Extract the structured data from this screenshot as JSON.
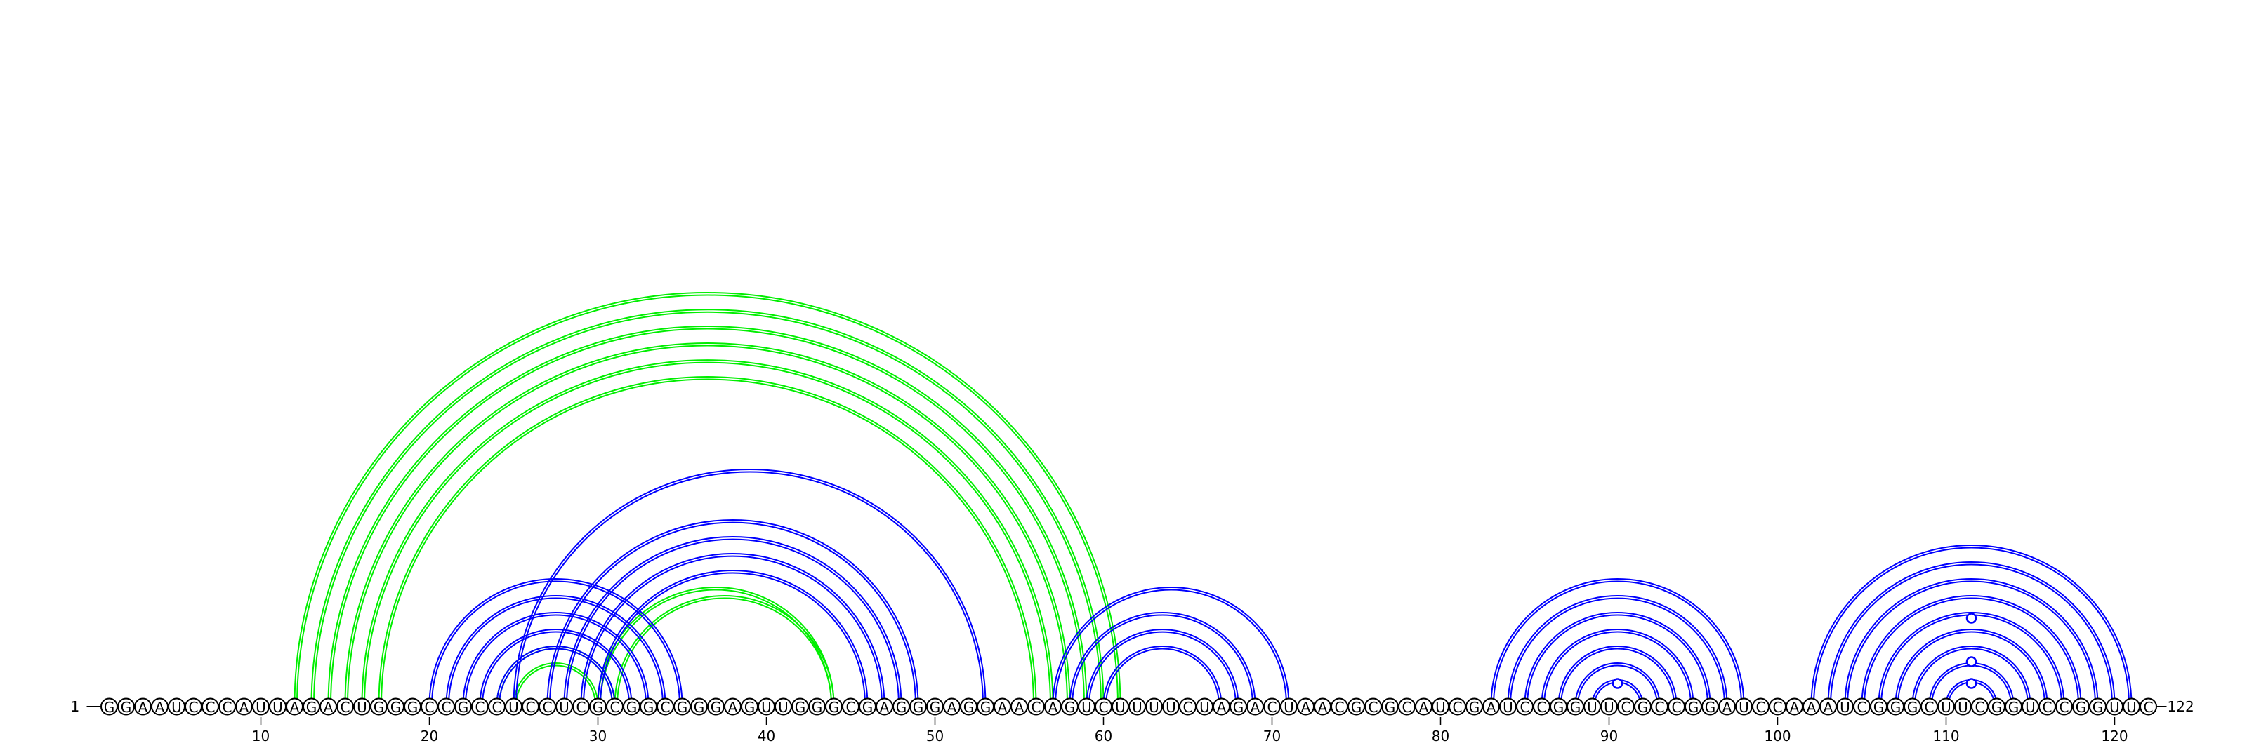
{
  "sequence": "GGAAUCCCAUUAGACUGGGCCGCCUCCUCGCGGCGGGAGUUGGGCGAGGGAGGAACAGUCUUUUCUAGACUAACGCGCAUCGAUCCGGUUCGCCGGAUCCAAAUCGGGCUUCGGUCCGGUUC",
  "start_label": "1",
  "end_label": "122",
  "tick_positions": [
    10,
    20,
    30,
    40,
    50,
    60,
    70,
    80,
    90,
    100,
    110,
    120
  ],
  "colors": {
    "blue": "#0000ff",
    "green": "#00ee00"
  },
  "pairs": [
    {
      "i": 12,
      "j": 61,
      "color": "green"
    },
    {
      "i": 13,
      "j": 60,
      "color": "green"
    },
    {
      "i": 14,
      "j": 59,
      "color": "green"
    },
    {
      "i": 15,
      "j": 58,
      "color": "green"
    },
    {
      "i": 16,
      "j": 57,
      "color": "green"
    },
    {
      "i": 17,
      "j": 56,
      "color": "green"
    },
    {
      "i": 24,
      "j": 31,
      "color": "green"
    },
    {
      "i": 25,
      "j": 30,
      "color": "green"
    },
    {
      "i": 30,
      "j": 44,
      "color": "green"
    },
    {
      "i": 31,
      "j": 44,
      "color": "green"
    },
    {
      "i": 20,
      "j": 35,
      "color": "blue"
    },
    {
      "i": 21,
      "j": 34,
      "color": "blue"
    },
    {
      "i": 22,
      "j": 33,
      "color": "blue"
    },
    {
      "i": 23,
      "j": 32,
      "color": "blue"
    },
    {
      "i": 24,
      "j": 31,
      "color": "blue"
    },
    {
      "i": 25,
      "j": 53,
      "color": "blue"
    },
    {
      "i": 27,
      "j": 49,
      "color": "blue"
    },
    {
      "i": 28,
      "j": 48,
      "color": "blue"
    },
    {
      "i": 29,
      "j": 47,
      "color": "blue"
    },
    {
      "i": 30,
      "j": 46,
      "color": "blue"
    },
    {
      "i": 57,
      "j": 71,
      "color": "blue"
    },
    {
      "i": 58,
      "j": 69,
      "color": "blue"
    },
    {
      "i": 59,
      "j": 68,
      "color": "blue"
    },
    {
      "i": 60,
      "j": 67,
      "color": "blue"
    },
    {
      "i": 83,
      "j": 98,
      "color": "blue"
    },
    {
      "i": 84,
      "j": 97,
      "color": "blue"
    },
    {
      "i": 85,
      "j": 96,
      "color": "blue"
    },
    {
      "i": 86,
      "j": 95,
      "color": "blue"
    },
    {
      "i": 87,
      "j": 94,
      "color": "blue"
    },
    {
      "i": 88,
      "j": 93,
      "color": "blue"
    },
    {
      "i": 89,
      "j": 92,
      "color": "blue"
    },
    {
      "i": 102,
      "j": 121,
      "color": "blue"
    },
    {
      "i": 103,
      "j": 120,
      "color": "blue"
    },
    {
      "i": 104,
      "j": 119,
      "color": "blue"
    },
    {
      "i": 105,
      "j": 118,
      "color": "blue"
    },
    {
      "i": 106,
      "j": 117,
      "color": "blue"
    },
    {
      "i": 107,
      "j": 116,
      "color": "blue"
    },
    {
      "i": 108,
      "j": 115,
      "color": "blue"
    },
    {
      "i": 109,
      "j": 114,
      "color": "blue"
    },
    {
      "i": 110,
      "j": 113,
      "color": "blue"
    }
  ],
  "loop_markers": [
    {
      "center": 90.5,
      "level": 1,
      "color": "blue"
    },
    {
      "center": 111.5,
      "level": 1,
      "color": "blue"
    },
    {
      "center": 111.5,
      "level": 2,
      "color": "blue"
    },
    {
      "center": 111.5,
      "level": 4,
      "color": "blue"
    }
  ]
}
